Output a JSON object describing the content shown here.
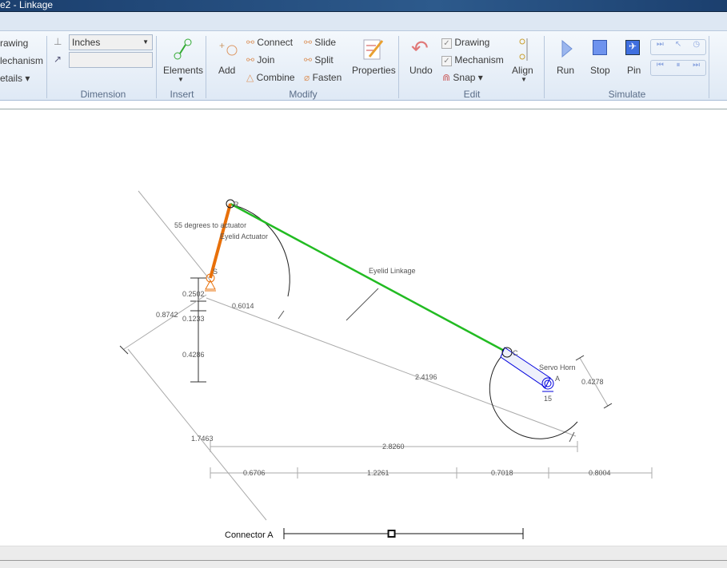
{
  "window": {
    "title": "e2 - Linkage"
  },
  "ribbon": {
    "view": {
      "drawing": "rawing",
      "mechanism": "lechanism",
      "details": "etails"
    },
    "dimension": {
      "units": "Inches",
      "coord_value": "",
      "group": "Dimension"
    },
    "insert": {
      "elements": "Elements",
      "group": "Insert"
    },
    "modify": {
      "add": "Add",
      "connect": "Connect",
      "join": "Join",
      "combine": "Combine",
      "slide": "Slide",
      "split": "Split",
      "fasten": "Fasten",
      "properties": "Properties",
      "group": "Modify"
    },
    "edit": {
      "undo": "Undo",
      "drawing": "Drawing",
      "drawing_checked": true,
      "mechanism": "Mechanism",
      "mechanism_checked": true,
      "snap": "Snap",
      "align": "Align",
      "group": "Edit"
    },
    "simulate": {
      "run": "Run",
      "stop": "Stop",
      "pin": "Pin",
      "group": "Simulate"
    }
  },
  "drawing": {
    "labels": {
      "angle": "55 degrees to actuator",
      "actuator": "Eyelid Actuator",
      "linkage": "Eyelid Linkage",
      "servo": "Servo Horn",
      "servo_num": "15"
    },
    "points": {
      "s": "S",
      "r": "R",
      "c": "C",
      "a": "A"
    },
    "dims": {
      "d1": "0.2502",
      "d2": "0.1233",
      "d3": "0.4286",
      "d4": "0.8742",
      "d5": "0.6014",
      "d6": "2.4196",
      "d7": "1.7463",
      "d8": "2.8260",
      "d9": "0.6706",
      "d10": "1.2261",
      "d11": "0.7018",
      "d12": "0.8004",
      "d13": "0.4278"
    },
    "colors": {
      "actuator": "#e8700a",
      "linkage": "#22bb22",
      "servo": "#0000dd"
    }
  },
  "slider": {
    "label": "Connector A",
    "value": 0.45
  }
}
